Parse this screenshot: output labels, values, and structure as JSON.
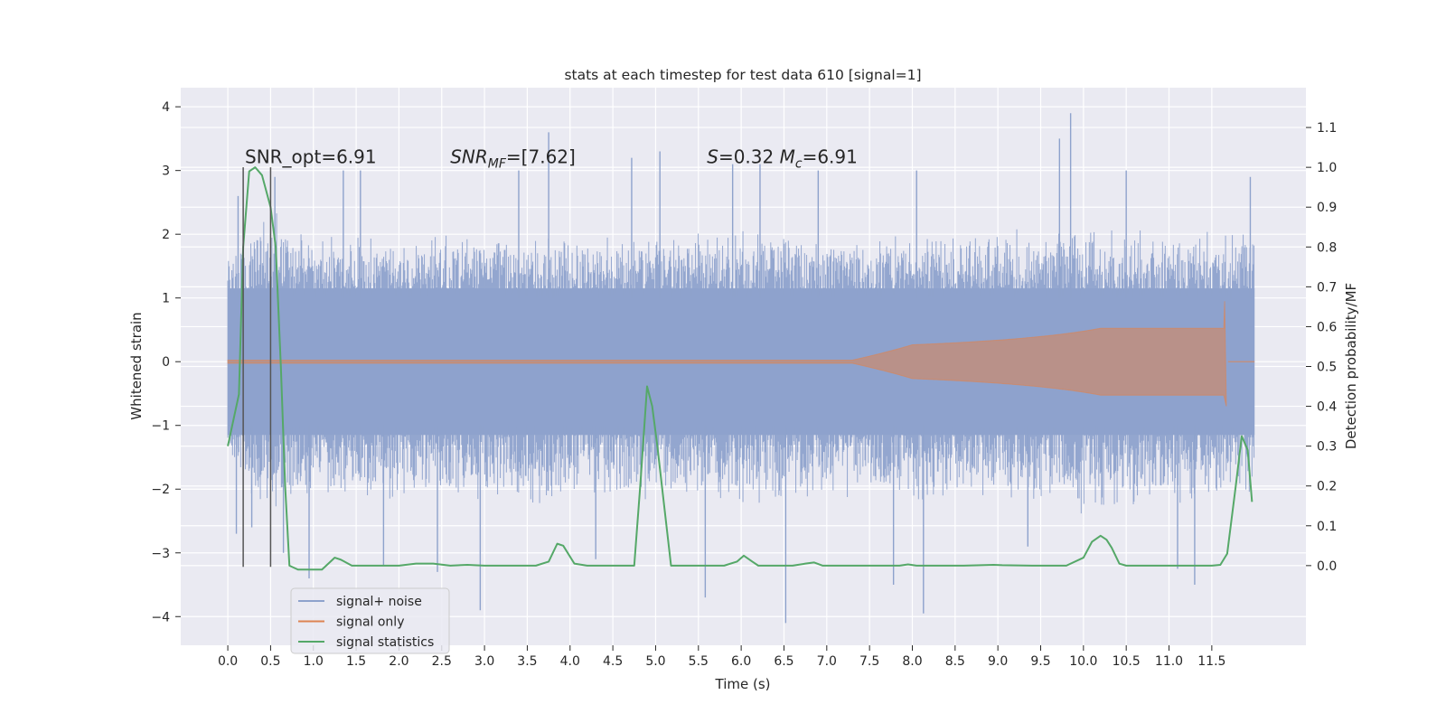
{
  "chart_data": {
    "type": "line",
    "title": "stats at each timestep for test data 610 [signal=1]",
    "xlabel": "Time (s)",
    "ylabel": "Whitened strain",
    "y2label": "Detection probability/MF",
    "xlim": [
      -0.55,
      12.6
    ],
    "ylim": [
      -4.45,
      4.3
    ],
    "y2lim": [
      -0.2,
      1.2
    ],
    "xticks": [
      0.0,
      0.5,
      1.0,
      1.5,
      2.0,
      2.5,
      3.0,
      3.5,
      4.0,
      4.5,
      5.0,
      5.5,
      6.0,
      6.5,
      7.0,
      7.5,
      8.0,
      8.5,
      9.0,
      9.5,
      10.0,
      10.5,
      11.0,
      11.5
    ],
    "xtick_labels": [
      "0.0",
      "0.5",
      "1.0",
      "1.5",
      "2.0",
      "2.5",
      "3.0",
      "3.5",
      "4.0",
      "4.5",
      "5.0",
      "5.5",
      "6.0",
      "6.5",
      "7.0",
      "7.5",
      "8.0",
      "8.5",
      "9.0",
      "9.5",
      "10.0",
      "10.5",
      "11.0",
      "11.5"
    ],
    "yticks": [
      -4,
      -3,
      -2,
      -1,
      0,
      1,
      2,
      3,
      4
    ],
    "ytick_labels": [
      "−4",
      "−3",
      "−2",
      "−1",
      "0",
      "1",
      "2",
      "3",
      "4"
    ],
    "y2ticks": [
      0.0,
      0.1,
      0.2,
      0.3,
      0.4,
      0.5,
      0.6,
      0.7,
      0.8,
      0.9,
      1.0,
      1.1
    ],
    "y2tick_labels": [
      "0.0",
      "0.1",
      "0.2",
      "0.3",
      "0.4",
      "0.5",
      "0.6",
      "0.7",
      "0.8",
      "0.9",
      "1.0",
      "1.1"
    ],
    "grid": true,
    "legend_position": "lower-left",
    "annotations": [
      {
        "id": "snr_opt",
        "text": "SNR_opt=6.91",
        "x": 0.2,
        "y": 3.0
      },
      {
        "id": "snr_mf",
        "text": "SNR_MF=[7.62]",
        "x": 2.6,
        "y": 3.0
      },
      {
        "id": "s_mc",
        "text": "S=0.32   M_c=6.91",
        "x": 5.6,
        "y": 3.0
      }
    ],
    "vlines": [
      {
        "x": 0.18,
        "ymin": -3.22,
        "ymax": 3.05
      },
      {
        "x": 0.5,
        "ymin": -3.22,
        "ymax": 3.05
      }
    ],
    "colors": {
      "plot_bg": "#eaeaf2",
      "grid": "#ffffff",
      "noise": "#8ea2cc",
      "signal": "#dd8452",
      "stats": "#55a868",
      "vline": "#555555"
    },
    "series": [
      {
        "name": "signal+ noise",
        "axis": "left",
        "style": "dense-fill",
        "x_range": [
          0.0,
          12.0
        ],
        "core_band": [
          -1.15,
          1.15
        ],
        "envelope": {
          "x": [
            0.0,
            0.25,
            0.5,
            1.0,
            2.0,
            3.0,
            4.0,
            5.0,
            6.0,
            7.0,
            8.0,
            9.0,
            10.0,
            11.0,
            12.0
          ],
          "upper": [
            1.7,
            2.1,
            2.4,
            2.0,
            2.0,
            2.1,
            2.0,
            2.1,
            2.2,
            2.0,
            2.1,
            2.1,
            2.2,
            2.1,
            2.1
          ],
          "lower": [
            -1.6,
            -2.1,
            -2.4,
            -2.2,
            -2.3,
            -2.2,
            -2.3,
            -2.2,
            -2.4,
            -2.2,
            -2.3,
            -2.2,
            -2.4,
            -2.3,
            -2.2
          ]
        },
        "spikes": [
          {
            "x": 0.1,
            "y": -2.7
          },
          {
            "x": 0.12,
            "y": 2.6
          },
          {
            "x": 0.28,
            "y": -2.6
          },
          {
            "x": 0.55,
            "y": 2.9
          },
          {
            "x": 0.65,
            "y": -3.0
          },
          {
            "x": 0.95,
            "y": -3.4
          },
          {
            "x": 1.35,
            "y": 3.0
          },
          {
            "x": 1.55,
            "y": 3.0
          },
          {
            "x": 1.82,
            "y": -3.2
          },
          {
            "x": 2.45,
            "y": -3.3
          },
          {
            "x": 2.95,
            "y": -3.9
          },
          {
            "x": 3.4,
            "y": 3.0
          },
          {
            "x": 3.75,
            "y": 3.6
          },
          {
            "x": 4.3,
            "y": -3.1
          },
          {
            "x": 4.72,
            "y": 3.2
          },
          {
            "x": 5.05,
            "y": 3.3
          },
          {
            "x": 5.58,
            "y": -3.7
          },
          {
            "x": 5.9,
            "y": 3.1
          },
          {
            "x": 6.22,
            "y": 3.1
          },
          {
            "x": 6.52,
            "y": -4.1
          },
          {
            "x": 6.9,
            "y": 3.0
          },
          {
            "x": 7.78,
            "y": -3.5
          },
          {
            "x": 8.05,
            "y": 3.0
          },
          {
            "x": 8.13,
            "y": -3.95
          },
          {
            "x": 9.35,
            "y": -2.9
          },
          {
            "x": 9.72,
            "y": 3.5
          },
          {
            "x": 9.85,
            "y": 3.9
          },
          {
            "x": 10.5,
            "y": 3.0
          },
          {
            "x": 11.1,
            "y": -3.25
          },
          {
            "x": 11.3,
            "y": -3.5
          },
          {
            "x": 11.95,
            "y": 2.9
          }
        ]
      },
      {
        "name": "signal only",
        "axis": "left",
        "style": "chirp",
        "x_range": [
          0.0,
          12.0
        ],
        "merger_time": 11.65,
        "peak_amplitude": 0.95,
        "trough_amplitude": -0.7
      },
      {
        "name": "signal statistics",
        "axis": "right",
        "style": "line",
        "x": [
          0.0,
          0.13,
          0.18,
          0.25,
          0.32,
          0.4,
          0.5,
          0.56,
          0.62,
          0.67,
          0.72,
          0.82,
          0.95,
          1.1,
          1.25,
          1.32,
          1.45,
          1.8,
          2.0,
          2.2,
          2.4,
          2.6,
          2.8,
          3.0,
          3.3,
          3.6,
          3.75,
          3.85,
          3.92,
          4.05,
          4.2,
          4.5,
          4.75,
          4.82,
          4.9,
          4.96,
          5.02,
          5.1,
          5.18,
          5.25,
          5.35,
          5.6,
          5.8,
          5.95,
          6.03,
          6.13,
          6.2,
          6.3,
          6.6,
          6.75,
          6.85,
          6.95,
          7.2,
          7.6,
          7.85,
          7.95,
          8.05,
          8.3,
          8.6,
          8.95,
          9.05,
          9.4,
          9.8,
          10.0,
          10.1,
          10.2,
          10.27,
          10.33,
          10.42,
          10.5,
          10.65,
          10.9,
          11.2,
          11.5,
          11.6,
          11.68,
          11.78,
          11.85,
          11.92,
          11.97
        ],
        "y": [
          0.3,
          0.43,
          0.8,
          0.99,
          1.0,
          0.98,
          0.9,
          0.8,
          0.5,
          0.2,
          0.0,
          -0.01,
          -0.01,
          -0.01,
          0.02,
          0.015,
          0.0,
          0.0,
          0.0,
          0.005,
          0.005,
          0.0,
          0.002,
          0.0,
          0.0,
          0.0,
          0.01,
          0.055,
          0.05,
          0.005,
          0.0,
          0.0,
          0.0,
          0.2,
          0.45,
          0.4,
          0.3,
          0.15,
          0.0,
          0.0,
          0.0,
          0.0,
          0.0,
          0.01,
          0.025,
          0.01,
          0.0,
          0.0,
          0.0,
          0.005,
          0.008,
          0.0,
          0.0,
          0.0,
          0.0,
          0.003,
          0.0,
          0.0,
          0.0,
          0.002,
          0.001,
          0.0,
          0.0,
          0.02,
          0.06,
          0.075,
          0.065,
          0.045,
          0.005,
          0.0,
          0.0,
          0.0,
          0.0,
          0.0,
          0.002,
          0.03,
          0.2,
          0.325,
          0.29,
          0.16
        ]
      }
    ]
  }
}
